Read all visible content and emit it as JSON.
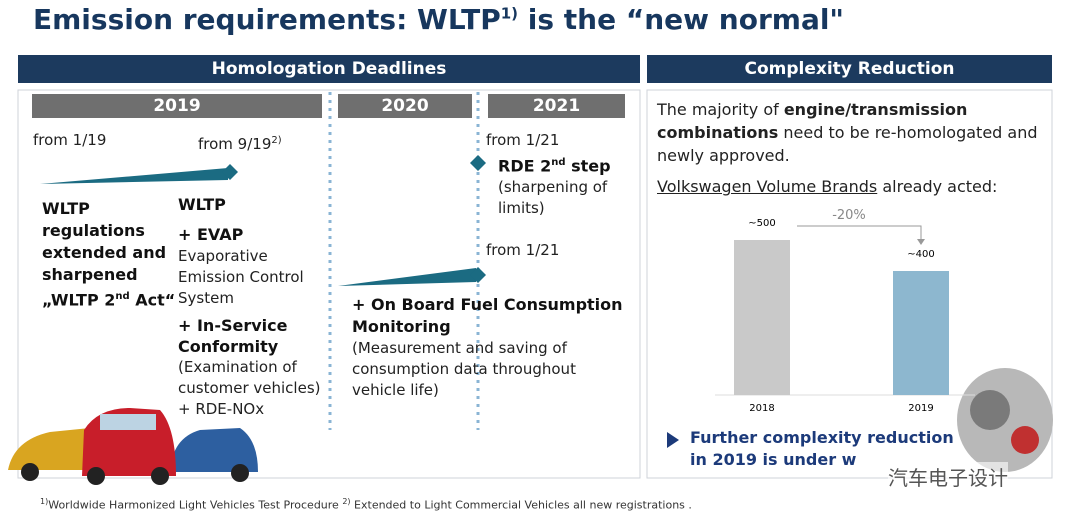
{
  "title": {
    "main": "Emission requirements: WLTP",
    "sup": "1)",
    "end": " is the “new normal\""
  },
  "left": {
    "header": "Homologation Deadlines",
    "years": [
      "2019",
      "2020",
      "2021"
    ],
    "from_1_19": "from 1/19",
    "from_9_19": "from 9/19",
    "from_9_19_sup": "2)",
    "wltp_act": {
      "lines": [
        "WLTP",
        "regulations",
        "extended and",
        "sharpened"
      ],
      "last": [
        "„WLTP 2",
        "nd",
        " Act“"
      ]
    },
    "wltp": "WLTP",
    "evap": "+ EVAP",
    "evap_desc": [
      "Evaporative",
      "Emission Control",
      "System"
    ],
    "isc": [
      "+ In-Service",
      "Conformity"
    ],
    "isc_desc": [
      "(Examination of",
      "customer vehicles)"
    ],
    "rde_nox": "+ RDE-NOx",
    "from_1_21_a": "from 1/21",
    "rde2": [
      "RDE 2",
      "nd",
      " step"
    ],
    "rde2_desc": [
      "(sharpening of",
      "limits)"
    ],
    "from_1_21_b": "from 1/21",
    "obfcm": [
      "+ On Board Fuel Consumption",
      "Monitoring"
    ],
    "obfcm_desc": [
      "(Measurement and saving of",
      "consumption data throughout",
      "vehicle life)"
    ]
  },
  "right": {
    "header": "Complexity Reduction",
    "para": [
      [
        "The majority of ",
        "engine/transmission"
      ],
      [
        "combinations",
        " need to be re-homologated and"
      ],
      [
        "newly approved."
      ]
    ],
    "acted": [
      "Volkswagen Volume Brands",
      " already acted:"
    ],
    "chart": {
      "type": "bar",
      "categories": [
        "2018",
        "2019"
      ],
      "values": [
        500,
        400
      ],
      "value_labels": [
        "~500",
        "~400"
      ],
      "colors": [
        "#c9c9c9",
        "#8db7cf"
      ],
      "ylim": [
        0,
        600
      ],
      "change_label": "-20%"
    },
    "conclusion": [
      "Further complexity reduction",
      "in 2019 is under w"
    ]
  },
  "watermark": "汽车电子设计",
  "footnote": {
    "sup1": "1)",
    "text1": "Worldwide Harmonized Light Vehicles Test Procedure ",
    "sup2": "2)",
    "text2": " Extended to Light Commercial Vehicles all new registrations ."
  }
}
